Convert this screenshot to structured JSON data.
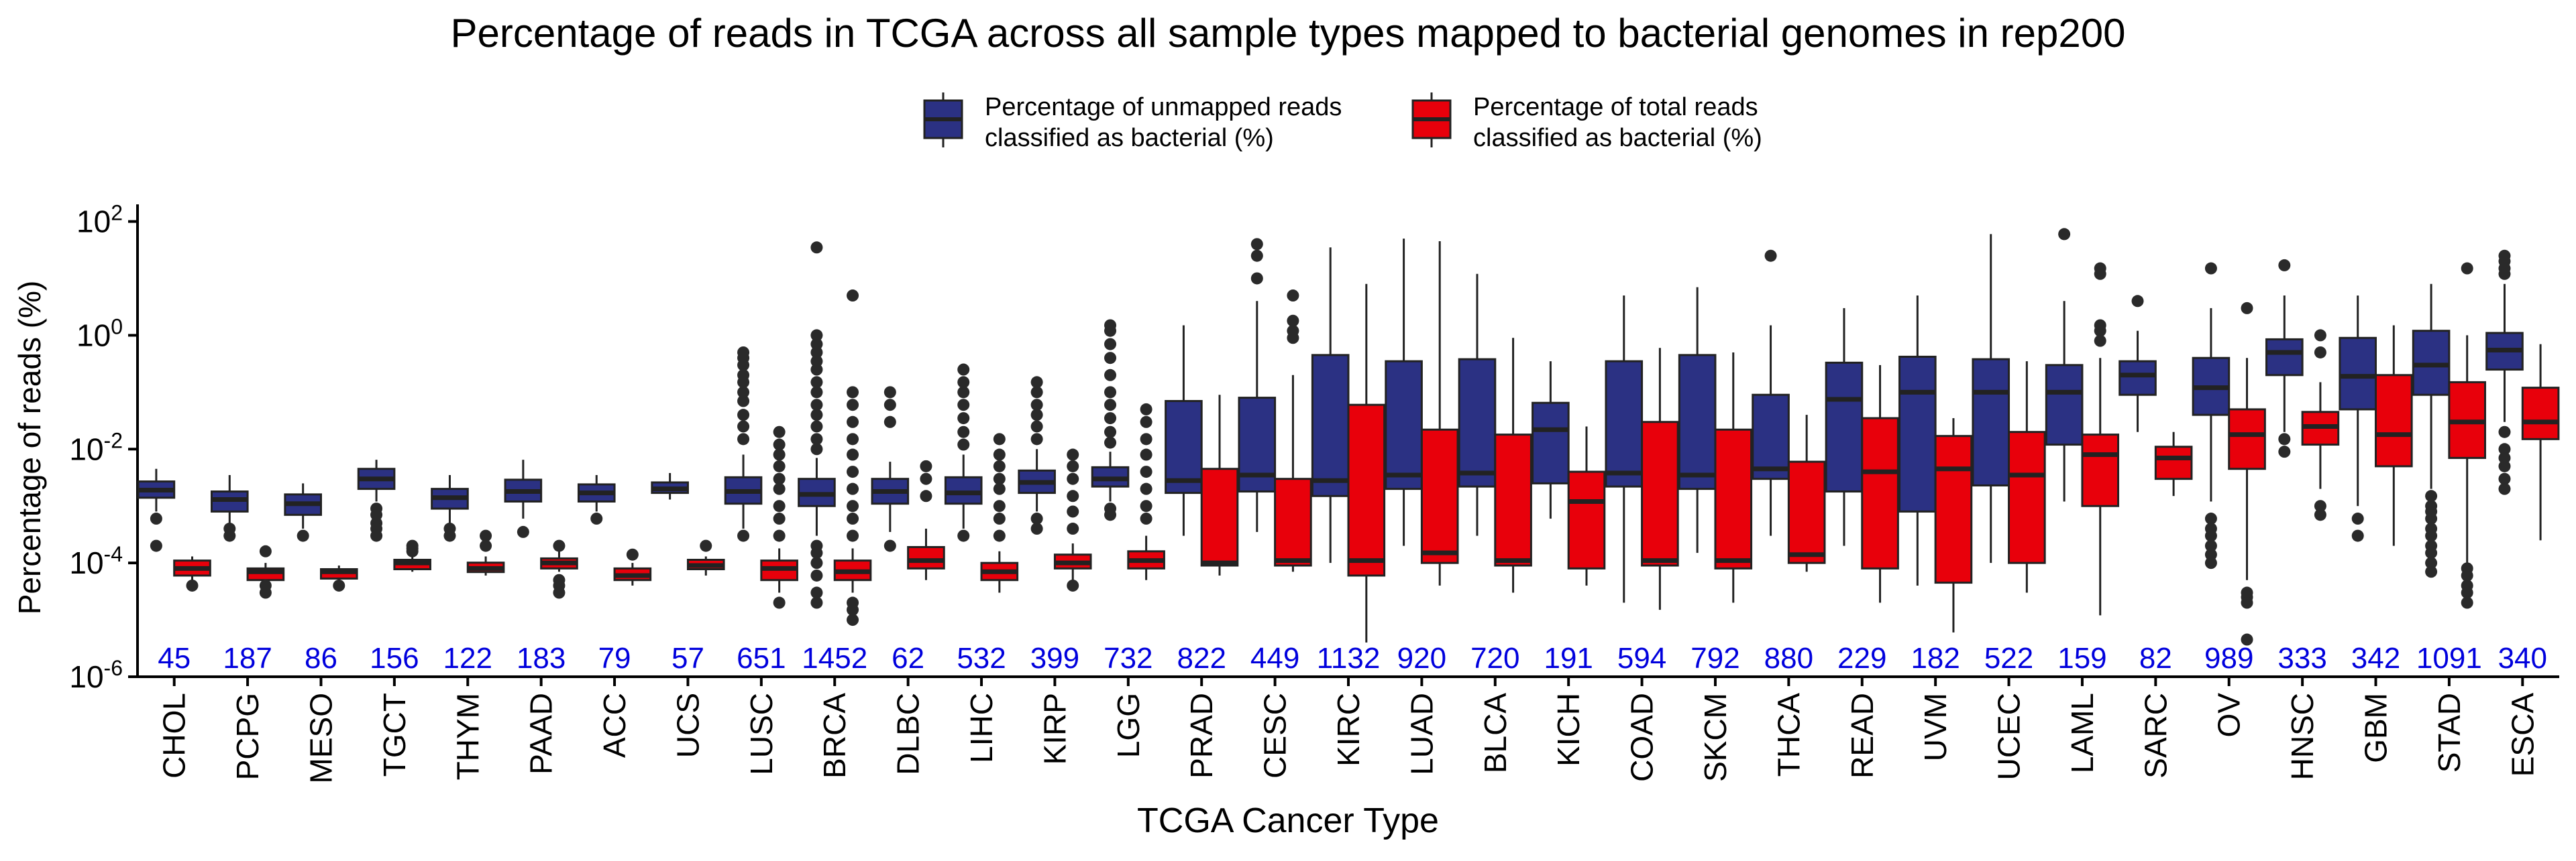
{
  "chart_data": {
    "type": "box",
    "title": "Percentage of reads in TCGA across all sample types mapped to bacterial genomes in rep200",
    "xlabel": "TCGA Cancer Type",
    "ylabel": "Percentage of reads (%)",
    "y_scale": "log10",
    "ylim": [
      1e-06,
      200
    ],
    "y_ticks": [
      {
        "value": 1e-06,
        "base": "10",
        "exp": "-6"
      },
      {
        "value": 0.0001,
        "base": "10",
        "exp": "-4"
      },
      {
        "value": 0.01,
        "base": "10",
        "exp": "-2"
      },
      {
        "value": 1,
        "base": "10",
        "exp": "0"
      },
      {
        "value": 100,
        "base": "10",
        "exp": "2"
      }
    ],
    "legend": {
      "position": "top",
      "entries": [
        {
          "series": "unmapped",
          "label_lines": [
            "Percentage of unmapped reads",
            "classified as bacterial (%)"
          ]
        },
        {
          "series": "total",
          "label_lines": [
            "Percentage of total reads",
            "classified as bacterial (%)"
          ]
        }
      ]
    },
    "series_colors": {
      "unmapped": "#2b3183",
      "total": "#e8000b"
    },
    "count_color": "#0000dd",
    "grid": false,
    "categories": [
      {
        "name": "CHOL",
        "n": "45",
        "unmapped": {
          "q1": 0.0014,
          "median": 0.0019,
          "q3": 0.0027,
          "whislo": 0.0008,
          "whishi": 0.0045,
          "outliers": [
            0.0006,
            0.0002
          ]
        },
        "total": {
          "q1": 6e-05,
          "median": 8e-05,
          "q3": 0.00011,
          "whislo": 4e-05,
          "whishi": 0.00013,
          "outliers": [
            4e-05
          ]
        }
      },
      {
        "name": "PCPG",
        "n": "187",
        "unmapped": {
          "q1": 0.0008,
          "median": 0.0013,
          "q3": 0.0018,
          "whislo": 0.0005,
          "whishi": 0.0035,
          "outliers": [
            0.0003,
            0.0004
          ]
        },
        "total": {
          "q1": 5e-05,
          "median": 7e-05,
          "q3": 8e-05,
          "whislo": 4e-05,
          "whishi": 0.0001,
          "outliers": [
            0.00016,
            4e-05,
            3e-05
          ]
        }
      },
      {
        "name": "MESO",
        "n": "86",
        "unmapped": {
          "q1": 0.0007,
          "median": 0.0011,
          "q3": 0.0016,
          "whislo": 0.0004,
          "whishi": 0.0025,
          "outliers": [
            0.0003
          ]
        },
        "total": {
          "q1": 5.5e-05,
          "median": 7e-05,
          "q3": 7.5e-05,
          "whislo": 5e-05,
          "whishi": 9e-05,
          "outliers": [
            4e-05
          ]
        }
      },
      {
        "name": "TGCT",
        "n": "156",
        "unmapped": {
          "q1": 0.002,
          "median": 0.003,
          "q3": 0.0045,
          "whislo": 0.0012,
          "whishi": 0.0065,
          "outliers": [
            0.0009,
            0.0007,
            0.0005,
            0.0004,
            0.0003
          ]
        },
        "total": {
          "q1": 8e-05,
          "median": 0.0001,
          "q3": 0.00011,
          "whislo": 7e-05,
          "whishi": 0.00013,
          "outliers": [
            0.00016,
            0.00018,
            0.0002
          ]
        }
      },
      {
        "name": "THYM",
        "n": "122",
        "unmapped": {
          "q1": 0.0009,
          "median": 0.0014,
          "q3": 0.002,
          "whislo": 0.0005,
          "whishi": 0.0035,
          "outliers": [
            0.0004,
            0.0003
          ]
        },
        "total": {
          "q1": 7e-05,
          "median": 8e-05,
          "q3": 0.0001,
          "whislo": 6e-05,
          "whishi": 0.00013,
          "outliers": [
            0.0003,
            0.0002
          ]
        }
      },
      {
        "name": "PAAD",
        "n": "183",
        "unmapped": {
          "q1": 0.0012,
          "median": 0.0018,
          "q3": 0.0029,
          "whislo": 0.0006,
          "whishi": 0.0065,
          "outliers": [
            0.00035
          ]
        },
        "total": {
          "q1": 8e-05,
          "median": 0.0001,
          "q3": 0.00012,
          "whislo": 7e-05,
          "whishi": 0.00016,
          "outliers": [
            0.0002,
            5e-05,
            4e-05,
            3e-05
          ]
        }
      },
      {
        "name": "ACC",
        "n": "79",
        "unmapped": {
          "q1": 0.0012,
          "median": 0.0017,
          "q3": 0.0024,
          "whislo": 0.0008,
          "whishi": 0.0035,
          "outliers": [
            0.0006
          ]
        },
        "total": {
          "q1": 5e-05,
          "median": 6e-05,
          "q3": 8e-05,
          "whislo": 4e-05,
          "whishi": 0.0001,
          "outliers": [
            0.00014
          ]
        }
      },
      {
        "name": "UCS",
        "n": "57",
        "unmapped": {
          "q1": 0.0017,
          "median": 0.002,
          "q3": 0.0026,
          "whislo": 0.0013,
          "whishi": 0.0038,
          "outliers": []
        },
        "total": {
          "q1": 8e-05,
          "median": 9e-05,
          "q3": 0.00011,
          "whislo": 6e-05,
          "whishi": 0.00013,
          "outliers": [
            0.0002
          ]
        }
      },
      {
        "name": "LUSC",
        "n": "651",
        "unmapped": {
          "q1": 0.0011,
          "median": 0.0018,
          "q3": 0.0032,
          "whislo": 0.0004,
          "whishi": 0.008,
          "outliers": [
            0.015,
            0.025,
            0.04,
            0.07,
            0.1,
            0.15,
            0.2,
            0.3,
            0.4,
            0.5,
            0.0003
          ]
        },
        "total": {
          "q1": 5e-05,
          "median": 8e-05,
          "q3": 0.00011,
          "whislo": 3e-05,
          "whishi": 0.00018,
          "outliers": [
            0.0003,
            0.0006,
            0.001,
            0.002,
            0.003,
            0.005,
            0.008,
            0.012,
            0.02,
            2e-05
          ]
        }
      },
      {
        "name": "BRCA",
        "n": "1452",
        "unmapped": {
          "q1": 0.001,
          "median": 0.0016,
          "q3": 0.003,
          "whislo": 0.0003,
          "whishi": 0.007,
          "outliers": [
            0.01,
            0.015,
            0.025,
            0.04,
            0.06,
            0.1,
            0.15,
            0.25,
            0.35,
            0.5,
            0.7,
            1,
            35,
            0.0002,
            0.00015,
            0.0001,
            6e-05,
            3e-05,
            2e-05
          ]
        },
        "total": {
          "q1": 5e-05,
          "median": 7e-05,
          "q3": 0.00011,
          "whislo": 3e-05,
          "whishi": 0.00018,
          "outliers": [
            0.0003,
            0.0006,
            0.001,
            0.002,
            0.004,
            0.008,
            0.015,
            0.03,
            0.06,
            0.1,
            5,
            2e-05,
            1.5e-05,
            1e-05
          ]
        }
      },
      {
        "name": "DLBC",
        "n": "62",
        "unmapped": {
          "q1": 0.0011,
          "median": 0.0018,
          "q3": 0.003,
          "whislo": 0.00035,
          "whishi": 0.006,
          "outliers": [
            0.03,
            0.06,
            0.1,
            0.0002
          ]
        },
        "total": {
          "q1": 8e-05,
          "median": 0.00011,
          "q3": 0.00019,
          "whislo": 5e-05,
          "whishi": 0.0004,
          "outliers": [
            0.0015,
            0.003,
            0.005
          ]
        }
      },
      {
        "name": "LIHC",
        "n": "532",
        "unmapped": {
          "q1": 0.0011,
          "median": 0.0017,
          "q3": 0.0032,
          "whislo": 0.0004,
          "whishi": 0.008,
          "outliers": [
            0.012,
            0.02,
            0.035,
            0.06,
            0.1,
            0.15,
            0.25,
            0.0003
          ]
        },
        "total": {
          "q1": 5e-05,
          "median": 7e-05,
          "q3": 0.0001,
          "whislo": 3e-05,
          "whishi": 0.00016,
          "outliers": [
            0.0003,
            0.0006,
            0.001,
            0.002,
            0.003,
            0.005,
            0.008,
            0.015
          ]
        }
      },
      {
        "name": "KIRP",
        "n": "399",
        "unmapped": {
          "q1": 0.0017,
          "median": 0.0026,
          "q3": 0.0042,
          "whislo": 0.0008,
          "whishi": 0.01,
          "outliers": [
            0.015,
            0.025,
            0.04,
            0.06,
            0.1,
            0.15,
            0.0006,
            0.0004
          ]
        },
        "total": {
          "q1": 8e-05,
          "median": 0.0001,
          "q3": 0.00014,
          "whislo": 5e-05,
          "whishi": 0.00022,
          "outliers": [
            0.0004,
            0.0008,
            0.0015,
            0.003,
            0.005,
            0.008,
            4e-05
          ]
        }
      },
      {
        "name": "LGG",
        "n": "732",
        "unmapped": {
          "q1": 0.0022,
          "median": 0.003,
          "q3": 0.0048,
          "whislo": 0.0012,
          "whishi": 0.009,
          "outliers": [
            0.013,
            0.02,
            0.035,
            0.06,
            0.1,
            0.2,
            0.4,
            0.7,
            1.2,
            1.5,
            0.0009,
            0.0007
          ]
        },
        "total": {
          "q1": 8e-05,
          "median": 0.00011,
          "q3": 0.00016,
          "whislo": 5e-05,
          "whishi": 0.0003,
          "outliers": [
            0.0006,
            0.001,
            0.002,
            0.004,
            0.008,
            0.015,
            0.03,
            0.05
          ]
        }
      },
      {
        "name": "PRAD",
        "n": "822",
        "unmapped": {
          "q1": 0.0017,
          "median": 0.0028,
          "q3": 0.07,
          "whislo": 0.0003,
          "whishi": 1.5,
          "outliers": []
        },
        "total": {
          "q1": 9e-05,
          "median": 0.0001,
          "q3": 0.0045,
          "whislo": 6e-05,
          "whishi": 0.09,
          "outliers": []
        }
      },
      {
        "name": "CESC",
        "n": "449",
        "unmapped": {
          "q1": 0.0018,
          "median": 0.0035,
          "q3": 0.08,
          "whislo": 0.00035,
          "whishi": 4,
          "outliers": [
            10,
            25,
            40
          ]
        },
        "total": {
          "q1": 9e-05,
          "median": 0.00011,
          "q3": 0.003,
          "whislo": 7e-05,
          "whishi": 0.2,
          "outliers": [
            0.9,
            1.2,
            1.8,
            5
          ]
        }
      },
      {
        "name": "KIRC",
        "n": "1132",
        "unmapped": {
          "q1": 0.0015,
          "median": 0.0028,
          "q3": 0.45,
          "whislo": 0.0001,
          "whishi": 35,
          "outliers": []
        },
        "total": {
          "q1": 6e-05,
          "median": 0.00011,
          "q3": 0.06,
          "whislo": 4e-06,
          "whishi": 8,
          "outliers": []
        }
      },
      {
        "name": "LUAD",
        "n": "920",
        "unmapped": {
          "q1": 0.002,
          "median": 0.0035,
          "q3": 0.35,
          "whislo": 0.0002,
          "whishi": 50,
          "outliers": []
        },
        "total": {
          "q1": 0.0001,
          "median": 0.00015,
          "q3": 0.022,
          "whislo": 4e-05,
          "whishi": 45,
          "outliers": []
        }
      },
      {
        "name": "BLCA",
        "n": "720",
        "unmapped": {
          "q1": 0.0022,
          "median": 0.0038,
          "q3": 0.38,
          "whislo": 0.0003,
          "whishi": 12,
          "outliers": []
        },
        "total": {
          "q1": 9e-05,
          "median": 0.00011,
          "q3": 0.018,
          "whislo": 3e-05,
          "whishi": 0.9,
          "outliers": []
        }
      },
      {
        "name": "KICH",
        "n": "191",
        "unmapped": {
          "q1": 0.0025,
          "median": 0.022,
          "q3": 0.065,
          "whislo": 0.0006,
          "whishi": 0.35,
          "outliers": []
        },
        "total": {
          "q1": 8e-05,
          "median": 0.0012,
          "q3": 0.004,
          "whislo": 4e-05,
          "whishi": 0.025,
          "outliers": []
        }
      },
      {
        "name": "COAD",
        "n": "594",
        "unmapped": {
          "q1": 0.0022,
          "median": 0.0038,
          "q3": 0.35,
          "whislo": 2e-05,
          "whishi": 5,
          "outliers": []
        },
        "total": {
          "q1": 9e-05,
          "median": 0.00011,
          "q3": 0.03,
          "whislo": 1.5e-05,
          "whishi": 0.6,
          "outliers": []
        }
      },
      {
        "name": "SKCM",
        "n": "792",
        "unmapped": {
          "q1": 0.002,
          "median": 0.0035,
          "q3": 0.45,
          "whislo": 0.00015,
          "whishi": 7,
          "outliers": []
        },
        "total": {
          "q1": 8e-05,
          "median": 0.00011,
          "q3": 0.022,
          "whislo": 2e-05,
          "whishi": 0.5,
          "outliers": []
        }
      },
      {
        "name": "THCA",
        "n": "880",
        "unmapped": {
          "q1": 0.003,
          "median": 0.0045,
          "q3": 0.09,
          "whislo": 0.0003,
          "whishi": 1.5,
          "outliers": [
            25
          ]
        },
        "total": {
          "q1": 0.0001,
          "median": 0.00014,
          "q3": 0.006,
          "whislo": 7e-05,
          "whishi": 0.04,
          "outliers": []
        }
      },
      {
        "name": "READ",
        "n": "229",
        "unmapped": {
          "q1": 0.0018,
          "median": 0.075,
          "q3": 0.33,
          "whislo": 0.0002,
          "whishi": 3,
          "outliers": []
        },
        "total": {
          "q1": 8e-05,
          "median": 0.004,
          "q3": 0.035,
          "whislo": 2e-05,
          "whishi": 0.3,
          "outliers": []
        }
      },
      {
        "name": "UVM",
        "n": "182",
        "unmapped": {
          "q1": 0.0008,
          "median": 0.1,
          "q3": 0.42,
          "whislo": 4e-05,
          "whishi": 5,
          "outliers": []
        },
        "total": {
          "q1": 4.5e-05,
          "median": 0.0045,
          "q3": 0.017,
          "whislo": 6e-06,
          "whishi": 0.035,
          "outliers": []
        }
      },
      {
        "name": "UCEC",
        "n": "522",
        "unmapped": {
          "q1": 0.0023,
          "median": 0.1,
          "q3": 0.38,
          "whislo": 0.0001,
          "whishi": 60,
          "outliers": []
        },
        "total": {
          "q1": 0.0001,
          "median": 0.0035,
          "q3": 0.02,
          "whislo": 3e-05,
          "whishi": 0.35,
          "outliers": []
        }
      },
      {
        "name": "LAML",
        "n": "159",
        "unmapped": {
          "q1": 0.012,
          "median": 0.1,
          "q3": 0.3,
          "whislo": 0.0012,
          "whishi": 4,
          "outliers": [
            60
          ]
        },
        "total": {
          "q1": 0.001,
          "median": 0.008,
          "q3": 0.018,
          "whislo": 1.2e-05,
          "whishi": 0.4,
          "outliers": [
            0.8,
            1.2,
            1.5,
            12,
            15
          ]
        }
      },
      {
        "name": "SARC",
        "n": "82",
        "unmapped": {
          "q1": 0.09,
          "median": 0.2,
          "q3": 0.35,
          "whislo": 0.02,
          "whishi": 1.2,
          "outliers": [
            4
          ]
        },
        "total": {
          "q1": 0.003,
          "median": 0.007,
          "q3": 0.011,
          "whislo": 0.0015,
          "whishi": 0.02,
          "outliers": []
        }
      },
      {
        "name": "OV",
        "n": "989",
        "unmapped": {
          "q1": 0.04,
          "median": 0.12,
          "q3": 0.4,
          "whislo": 0.0012,
          "whishi": 3,
          "outliers": [
            15,
            0.0006,
            0.0004,
            0.0003,
            0.0002,
            0.00014,
            0.0001
          ]
        },
        "total": {
          "q1": 0.0045,
          "median": 0.018,
          "q3": 0.05,
          "whislo": 5e-05,
          "whishi": 0.4,
          "outliers": [
            3,
            3e-05,
            2.5e-05,
            2e-05,
            4.5e-06
          ]
        }
      },
      {
        "name": "HNSC",
        "n": "333",
        "unmapped": {
          "q1": 0.2,
          "median": 0.5,
          "q3": 0.85,
          "whislo": 0.02,
          "whishi": 5,
          "outliers": [
            17,
            0.015,
            0.009
          ]
        },
        "total": {
          "q1": 0.012,
          "median": 0.025,
          "q3": 0.045,
          "whislo": 0.002,
          "whishi": 0.15,
          "outliers": [
            0.5,
            1,
            0.001,
            0.0007
          ]
        }
      },
      {
        "name": "GBM",
        "n": "342",
        "unmapped": {
          "q1": 0.05,
          "median": 0.19,
          "q3": 0.9,
          "whislo": 0.001,
          "whishi": 5,
          "outliers": [
            0.0006,
            0.0003
          ]
        },
        "total": {
          "q1": 0.005,
          "median": 0.018,
          "q3": 0.2,
          "whislo": 0.0002,
          "whishi": 1.5,
          "outliers": []
        }
      },
      {
        "name": "STAD",
        "n": "1091",
        "unmapped": {
          "q1": 0.09,
          "median": 0.3,
          "q3": 1.2,
          "whislo": 0.002,
          "whishi": 8,
          "outliers": [
            0.0015,
            0.001,
            0.0008,
            0.0006,
            0.0004,
            0.0003,
            0.0002,
            0.00015,
            0.0001,
            7e-05
          ]
        },
        "total": {
          "q1": 0.007,
          "median": 0.03,
          "q3": 0.15,
          "whislo": 0.0001,
          "whishi": 1,
          "outliers": [
            15,
            8e-05,
            6e-05,
            4e-05,
            3e-05,
            2e-05
          ]
        }
      },
      {
        "name": "ESCA",
        "n": "340",
        "unmapped": {
          "q1": 0.25,
          "median": 0.55,
          "q3": 1.1,
          "whislo": 0.03,
          "whishi": 8,
          "outliers": [
            12,
            15,
            20,
            25,
            0.02,
            0.01,
            0.007,
            0.005,
            0.003,
            0.002
          ]
        },
        "total": {
          "q1": 0.015,
          "median": 0.03,
          "q3": 0.12,
          "whislo": 0.00025,
          "whishi": 0.7,
          "outliers": []
        }
      }
    ]
  }
}
